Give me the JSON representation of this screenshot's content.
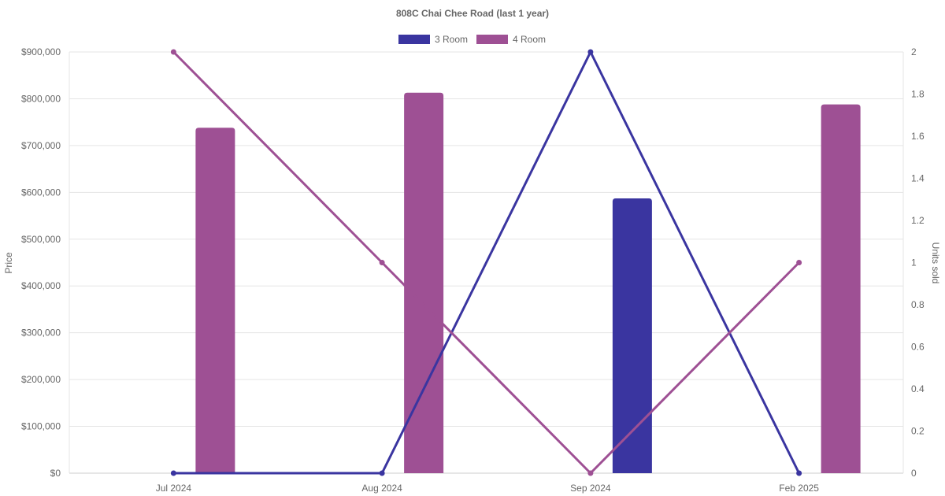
{
  "chart_data": {
    "type": "bar",
    "title": "808C Chai Chee Road (last 1 year)",
    "categories": [
      "Jul 2024",
      "Aug 2024",
      "Sep 2024",
      "Feb 2025"
    ],
    "left_axis": {
      "label": "Price",
      "ylim": [
        0,
        900000
      ],
      "ticks": [
        0,
        100000,
        200000,
        300000,
        400000,
        500000,
        600000,
        700000,
        800000,
        900000
      ],
      "tick_labels": [
        "$0",
        "$100,000",
        "$200,000",
        "$300,000",
        "$400,000",
        "$500,000",
        "$600,000",
        "$700,000",
        "$800,000",
        "$900,000"
      ]
    },
    "right_axis": {
      "label": "Units sold",
      "ylim": [
        0,
        2
      ],
      "ticks": [
        0,
        0.2,
        0.4,
        0.6,
        0.8,
        1,
        1.2,
        1.4,
        1.6,
        1.8,
        2
      ],
      "tick_labels": [
        "0",
        "0.2",
        "0.4",
        "0.6",
        "0.8",
        "1",
        "1.2",
        "1.4",
        "1.6",
        "1.8",
        "2"
      ]
    },
    "legend": {
      "placement": "top-center"
    },
    "grid": true,
    "series": [
      {
        "name": "3 Room",
        "color": "#3a35a0",
        "price": [
          null,
          null,
          587000,
          null
        ],
        "units": [
          0,
          0,
          2,
          0
        ]
      },
      {
        "name": "4 Room",
        "color": "#9e5094",
        "price": [
          738000,
          813000,
          null,
          788000
        ],
        "units": [
          2,
          1,
          0,
          1
        ]
      }
    ]
  }
}
